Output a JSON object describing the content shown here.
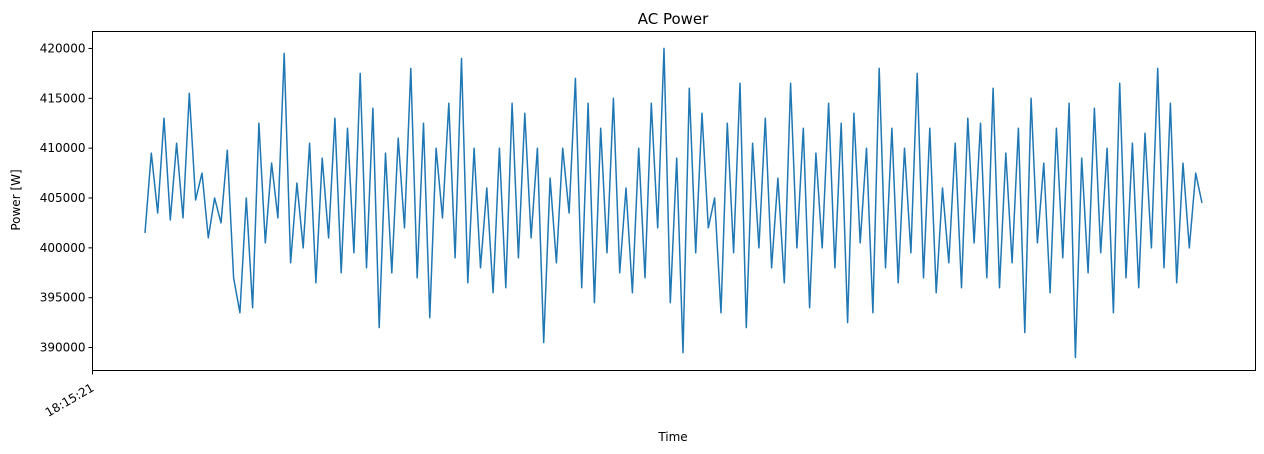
{
  "chart_data": {
    "type": "line",
    "title": "AC Power",
    "xlabel": "Time",
    "ylabel": "Power [W]",
    "ylim": [
      387700,
      421700
    ],
    "yticks": [
      390000,
      395000,
      400000,
      405000,
      410000,
      415000,
      420000
    ],
    "xticks": [
      "18:15:21"
    ],
    "grid": false,
    "line_color": "#1f77b4",
    "series": [
      {
        "values": [
          401500,
          409500,
          403500,
          413000,
          402800,
          410500,
          403000,
          415500,
          404800,
          407500,
          401000,
          405000,
          402500,
          409800,
          397000,
          393500,
          405000,
          394000,
          412500,
          400500,
          408500,
          403000,
          419500,
          398500,
          406500,
          400000,
          410500,
          396500,
          409000,
          401000,
          413000,
          397500,
          412000,
          399500,
          417500,
          398000,
          414000,
          392000,
          409500,
          397500,
          411000,
          402000,
          418000,
          397000,
          412500,
          393000,
          410000,
          403000,
          414500,
          399000,
          419000,
          396500,
          410000,
          398000,
          406000,
          395500,
          410000,
          396000,
          414500,
          399000,
          413500,
          401000,
          410000,
          390500,
          407000,
          398500,
          410000,
          403500,
          417000,
          396000,
          414500,
          394500,
          412000,
          399500,
          415000,
          397500,
          406000,
          395500,
          410000,
          397000,
          414500,
          402000,
          420000,
          394500,
          409000,
          389500,
          416000,
          399500,
          413500,
          402000,
          405000,
          393500,
          412500,
          399500,
          416500,
          392000,
          410500,
          400000,
          413000,
          398000,
          407000,
          396500,
          416500,
          400000,
          412000,
          394000,
          409500,
          400000,
          414500,
          398000,
          412500,
          392500,
          413500,
          400500,
          410000,
          393500,
          418000,
          398000,
          412000,
          396500,
          410000,
          399500,
          417500,
          397000,
          412000,
          395500,
          406000,
          398500,
          410500,
          396000,
          413000,
          400500,
          412500,
          397000,
          416000,
          396000,
          409500,
          398500,
          412000,
          391500,
          415000,
          400500,
          408500,
          395500,
          412000,
          399000,
          414500,
          389000,
          409000,
          397500,
          414000,
          399500,
          410000,
          393500,
          416500,
          397000,
          410500,
          396000,
          411500,
          400000,
          418000,
          398000,
          414500,
          396500,
          408500,
          400000,
          407500,
          404500
        ]
      }
    ]
  }
}
